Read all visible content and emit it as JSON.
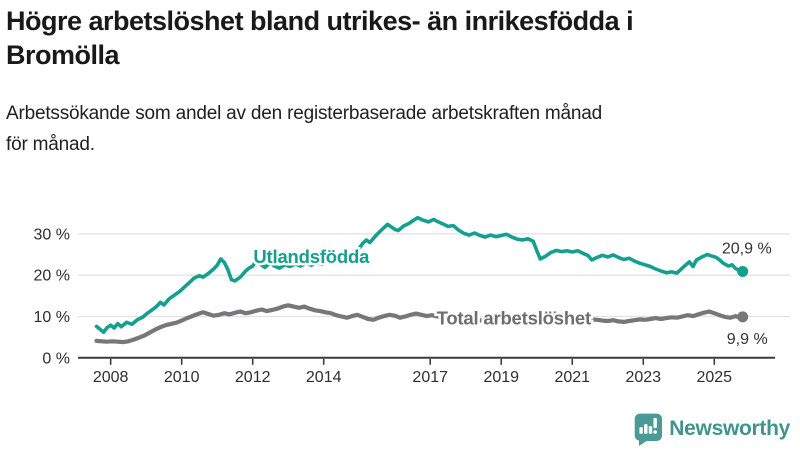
{
  "header": {
    "title_lines": [
      "Högre arbetslöshet bland utrikes- än inrikesfödda i",
      "Bromölla"
    ],
    "subtitle_lines": [
      "Arbetssökande som andel av den registerbaserade arbetskraften månad",
      "för månad."
    ]
  },
  "colors": {
    "foreign_born": "#14a08f",
    "total_line": "#77777b",
    "total_label": "#6d6d72",
    "grid": "#e1e1e1",
    "axis": "#3c3c3c",
    "tick_text": "#2e2e2e",
    "value_text": "#333333",
    "logo_teal": "#4a9b95",
    "brand_text": "#3f948e"
  },
  "footer": {
    "brand": "Newsworthy"
  },
  "chart_data": {
    "type": "line",
    "x_unit": "decimal_year",
    "xlim": [
      2007.08,
      2026.71
    ],
    "ylim": [
      0,
      36.5
    ],
    "grid": "horizontal",
    "x_ticks": [
      2008,
      2010,
      2012,
      2014,
      2017,
      2019,
      2021,
      2023,
      2025
    ],
    "y_ticks": [
      0,
      10,
      20,
      30
    ],
    "y_tick_suffix": " %",
    "series": [
      {
        "name": "Utlandsfödda",
        "color_key": "foreign_born",
        "label_color_key": "foreign_born",
        "end_value": 20.9,
        "end_label": "20,9 %",
        "end_label_offset": {
          "dx": 29,
          "dy": -18
        },
        "label_pos": {
          "x": 2012.02,
          "y": 23.0
        },
        "points": [
          [
            2007.6,
            7.6
          ],
          [
            2007.7,
            6.9
          ],
          [
            2007.8,
            6.2
          ],
          [
            2007.9,
            7.3
          ],
          [
            2008.0,
            7.9
          ],
          [
            2008.1,
            7.2
          ],
          [
            2008.2,
            8.3
          ],
          [
            2008.3,
            7.5
          ],
          [
            2008.45,
            8.6
          ],
          [
            2008.6,
            8.1
          ],
          [
            2008.75,
            9.2
          ],
          [
            2008.9,
            9.8
          ],
          [
            2009.05,
            10.9
          ],
          [
            2009.2,
            11.8
          ],
          [
            2009.3,
            12.5
          ],
          [
            2009.4,
            13.4
          ],
          [
            2009.5,
            12.8
          ],
          [
            2009.65,
            14.3
          ],
          [
            2009.8,
            15.2
          ],
          [
            2009.95,
            16.1
          ],
          [
            2010.1,
            17.3
          ],
          [
            2010.25,
            18.5
          ],
          [
            2010.35,
            19.3
          ],
          [
            2010.5,
            19.9
          ],
          [
            2010.6,
            19.5
          ],
          [
            2010.75,
            20.4
          ],
          [
            2010.9,
            21.5
          ],
          [
            2011.0,
            22.4
          ],
          [
            2011.1,
            23.9
          ],
          [
            2011.2,
            23.1
          ],
          [
            2011.3,
            21.4
          ],
          [
            2011.4,
            18.9
          ],
          [
            2011.5,
            18.6
          ],
          [
            2011.65,
            19.5
          ],
          [
            2011.8,
            21.0
          ],
          [
            2011.9,
            21.7
          ],
          [
            2012.0,
            22.2
          ],
          [
            2012.1,
            23.5
          ],
          [
            2012.2,
            22.7
          ],
          [
            2012.35,
            21.9
          ],
          [
            2012.5,
            23.0
          ],
          [
            2012.6,
            22.3
          ],
          [
            2012.75,
            21.7
          ],
          [
            2012.9,
            22.5
          ],
          [
            2013.05,
            22.1
          ],
          [
            2013.2,
            22.7
          ],
          [
            2013.35,
            22.2
          ],
          [
            2013.5,
            22.9
          ],
          [
            2013.65,
            22.4
          ],
          [
            2013.8,
            23.0
          ],
          [
            2013.95,
            22.6
          ],
          [
            2014.1,
            23.2
          ],
          [
            2014.25,
            22.8
          ],
          [
            2014.4,
            23.4
          ],
          [
            2014.55,
            24.2
          ],
          [
            2014.7,
            24.9
          ],
          [
            2014.85,
            25.7
          ],
          [
            2015.0,
            26.5
          ],
          [
            2015.1,
            27.7
          ],
          [
            2015.2,
            28.5
          ],
          [
            2015.3,
            27.9
          ],
          [
            2015.45,
            29.4
          ],
          [
            2015.6,
            30.7
          ],
          [
            2015.7,
            31.5
          ],
          [
            2015.8,
            32.3
          ],
          [
            2015.9,
            31.7
          ],
          [
            2016.0,
            31.1
          ],
          [
            2016.1,
            30.8
          ],
          [
            2016.25,
            31.9
          ],
          [
            2016.4,
            32.5
          ],
          [
            2016.5,
            33.1
          ],
          [
            2016.65,
            33.9
          ],
          [
            2016.8,
            33.3
          ],
          [
            2016.95,
            32.9
          ],
          [
            2017.1,
            33.5
          ],
          [
            2017.2,
            33.0
          ],
          [
            2017.35,
            32.4
          ],
          [
            2017.5,
            31.8
          ],
          [
            2017.65,
            32.0
          ],
          [
            2017.8,
            30.9
          ],
          [
            2017.95,
            30.1
          ],
          [
            2018.1,
            29.7
          ],
          [
            2018.25,
            30.2
          ],
          [
            2018.4,
            29.6
          ],
          [
            2018.55,
            29.2
          ],
          [
            2018.7,
            29.7
          ],
          [
            2018.85,
            29.3
          ],
          [
            2019.0,
            29.6
          ],
          [
            2019.15,
            29.9
          ],
          [
            2019.3,
            29.2
          ],
          [
            2019.45,
            28.7
          ],
          [
            2019.6,
            28.5
          ],
          [
            2019.75,
            28.8
          ],
          [
            2019.9,
            28.2
          ],
          [
            2020.0,
            26.0
          ],
          [
            2020.1,
            23.9
          ],
          [
            2020.25,
            24.6
          ],
          [
            2020.4,
            25.5
          ],
          [
            2020.55,
            26.0
          ],
          [
            2020.7,
            25.7
          ],
          [
            2020.85,
            25.9
          ],
          [
            2021.0,
            25.6
          ],
          [
            2021.15,
            25.9
          ],
          [
            2021.3,
            25.3
          ],
          [
            2021.45,
            24.7
          ],
          [
            2021.55,
            23.7
          ],
          [
            2021.7,
            24.3
          ],
          [
            2021.85,
            24.8
          ],
          [
            2022.0,
            24.4
          ],
          [
            2022.15,
            24.9
          ],
          [
            2022.3,
            24.3
          ],
          [
            2022.45,
            23.8
          ],
          [
            2022.6,
            24.1
          ],
          [
            2022.75,
            23.4
          ],
          [
            2022.9,
            22.9
          ],
          [
            2023.05,
            22.5
          ],
          [
            2023.2,
            22.1
          ],
          [
            2023.35,
            21.5
          ],
          [
            2023.5,
            21.0
          ],
          [
            2023.65,
            20.6
          ],
          [
            2023.8,
            20.8
          ],
          [
            2023.95,
            20.5
          ],
          [
            2024.1,
            21.7
          ],
          [
            2024.2,
            22.5
          ],
          [
            2024.3,
            23.2
          ],
          [
            2024.4,
            22.1
          ],
          [
            2024.5,
            23.7
          ],
          [
            2024.65,
            24.4
          ],
          [
            2024.8,
            25.0
          ],
          [
            2024.9,
            24.7
          ],
          [
            2025.05,
            24.3
          ],
          [
            2025.15,
            23.7
          ],
          [
            2025.25,
            22.9
          ],
          [
            2025.4,
            22.2
          ],
          [
            2025.5,
            22.5
          ],
          [
            2025.6,
            21.6
          ],
          [
            2025.7,
            21.2
          ],
          [
            2025.8,
            20.9
          ]
        ]
      },
      {
        "name": "Total arbetslöshet",
        "color_key": "total_line",
        "label_color_key": "total_label",
        "end_value": 9.9,
        "end_label": "9,9 %",
        "end_label_offset": {
          "dx": 25,
          "dy": 27
        },
        "label_pos": {
          "x": 2017.18,
          "y": 8.05
        },
        "points": [
          [
            2007.6,
            4.1
          ],
          [
            2007.75,
            4.0
          ],
          [
            2007.9,
            3.9
          ],
          [
            2008.05,
            4.0
          ],
          [
            2008.2,
            3.9
          ],
          [
            2008.35,
            3.8
          ],
          [
            2008.5,
            4.0
          ],
          [
            2008.65,
            4.4
          ],
          [
            2008.8,
            4.9
          ],
          [
            2008.95,
            5.4
          ],
          [
            2009.1,
            6.1
          ],
          [
            2009.25,
            6.8
          ],
          [
            2009.4,
            7.4
          ],
          [
            2009.55,
            7.9
          ],
          [
            2009.7,
            8.2
          ],
          [
            2009.85,
            8.5
          ],
          [
            2010.0,
            9.0
          ],
          [
            2010.15,
            9.6
          ],
          [
            2010.3,
            10.1
          ],
          [
            2010.45,
            10.6
          ],
          [
            2010.6,
            11.0
          ],
          [
            2010.75,
            10.6
          ],
          [
            2010.9,
            10.2
          ],
          [
            2011.05,
            10.4
          ],
          [
            2011.2,
            10.8
          ],
          [
            2011.35,
            10.5
          ],
          [
            2011.5,
            10.9
          ],
          [
            2011.65,
            11.2
          ],
          [
            2011.8,
            10.8
          ],
          [
            2011.95,
            11.0
          ],
          [
            2012.1,
            11.4
          ],
          [
            2012.25,
            11.7
          ],
          [
            2012.4,
            11.3
          ],
          [
            2012.55,
            11.6
          ],
          [
            2012.7,
            11.9
          ],
          [
            2012.85,
            12.4
          ],
          [
            2013.0,
            12.7
          ],
          [
            2013.15,
            12.4
          ],
          [
            2013.3,
            12.1
          ],
          [
            2013.45,
            12.4
          ],
          [
            2013.6,
            11.9
          ],
          [
            2013.75,
            11.5
          ],
          [
            2013.9,
            11.3
          ],
          [
            2014.05,
            11.0
          ],
          [
            2014.2,
            10.8
          ],
          [
            2014.35,
            10.3
          ],
          [
            2014.5,
            10.0
          ],
          [
            2014.65,
            9.7
          ],
          [
            2014.8,
            10.1
          ],
          [
            2014.95,
            10.4
          ],
          [
            2015.1,
            9.9
          ],
          [
            2015.25,
            9.4
          ],
          [
            2015.4,
            9.2
          ],
          [
            2015.55,
            9.7
          ],
          [
            2015.7,
            10.1
          ],
          [
            2015.85,
            10.4
          ],
          [
            2016.0,
            10.2
          ],
          [
            2016.15,
            9.7
          ],
          [
            2016.3,
            10.0
          ],
          [
            2016.45,
            10.4
          ],
          [
            2016.6,
            10.7
          ],
          [
            2016.75,
            10.4
          ],
          [
            2016.9,
            10.1
          ],
          [
            2017.05,
            10.3
          ],
          [
            2017.2,
            10.0
          ],
          [
            2017.35,
            9.7
          ],
          [
            2017.5,
            9.4
          ],
          [
            2017.65,
            9.2
          ],
          [
            2017.8,
            8.9
          ],
          [
            2017.95,
            8.8
          ],
          [
            2018.1,
            9.0
          ],
          [
            2018.25,
            9.2
          ],
          [
            2018.4,
            9.0
          ],
          [
            2018.55,
            9.3
          ],
          [
            2018.7,
            9.5
          ],
          [
            2018.85,
            9.3
          ],
          [
            2019.0,
            9.5
          ],
          [
            2019.15,
            9.7
          ],
          [
            2019.3,
            9.4
          ],
          [
            2019.45,
            9.2
          ],
          [
            2019.6,
            9.4
          ],
          [
            2019.75,
            9.6
          ],
          [
            2019.9,
            9.7
          ],
          [
            2020.05,
            10.0
          ],
          [
            2020.2,
            10.6
          ],
          [
            2020.35,
            10.9
          ],
          [
            2020.5,
            10.7
          ],
          [
            2020.65,
            10.5
          ],
          [
            2020.8,
            10.3
          ],
          [
            2020.95,
            10.1
          ],
          [
            2021.1,
            10.0
          ],
          [
            2021.25,
            9.8
          ],
          [
            2021.4,
            9.5
          ],
          [
            2021.55,
            9.3
          ],
          [
            2021.7,
            9.2
          ],
          [
            2021.85,
            9.0
          ],
          [
            2022.0,
            8.9
          ],
          [
            2022.15,
            9.1
          ],
          [
            2022.3,
            8.8
          ],
          [
            2022.45,
            8.7
          ],
          [
            2022.6,
            8.9
          ],
          [
            2022.75,
            9.1
          ],
          [
            2022.9,
            9.3
          ],
          [
            2023.05,
            9.2
          ],
          [
            2023.2,
            9.4
          ],
          [
            2023.35,
            9.6
          ],
          [
            2023.5,
            9.4
          ],
          [
            2023.65,
            9.6
          ],
          [
            2023.8,
            9.8
          ],
          [
            2023.95,
            9.7
          ],
          [
            2024.1,
            10.0
          ],
          [
            2024.25,
            10.3
          ],
          [
            2024.4,
            10.1
          ],
          [
            2024.55,
            10.5
          ],
          [
            2024.7,
            10.9
          ],
          [
            2024.85,
            11.2
          ],
          [
            2025.0,
            10.8
          ],
          [
            2025.15,
            10.3
          ],
          [
            2025.3,
            9.9
          ],
          [
            2025.45,
            9.7
          ],
          [
            2025.6,
            10.1
          ],
          [
            2025.7,
            9.8
          ],
          [
            2025.8,
            9.9
          ]
        ]
      }
    ]
  }
}
